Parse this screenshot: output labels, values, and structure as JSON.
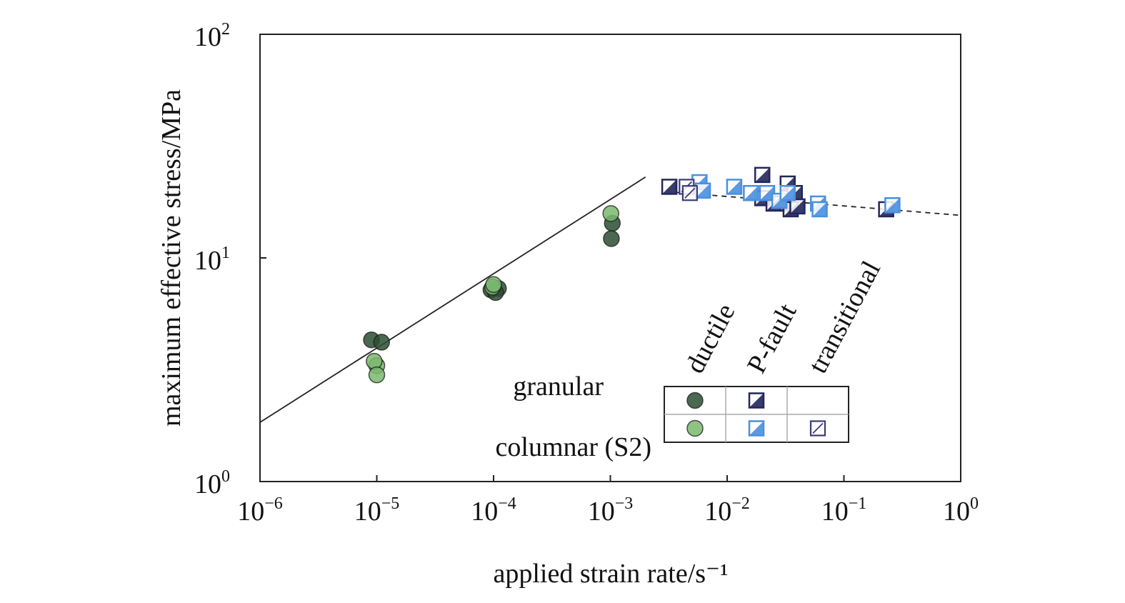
{
  "chart_data": {
    "type": "scatter",
    "x_scale": "log",
    "y_scale": "log",
    "xlabel": "applied strain rate/s⁻¹",
    "ylabel": "maximum effective stress/MPa",
    "xlim": [
      1e-06,
      1
    ],
    "ylim": [
      1,
      100
    ],
    "grid": false,
    "x_ticks": [
      {
        "value": 1e-06,
        "base": "10",
        "exp": "−6"
      },
      {
        "value": 1e-05,
        "base": "10",
        "exp": "−5"
      },
      {
        "value": 0.0001,
        "base": "10",
        "exp": "−4"
      },
      {
        "value": 0.001,
        "base": "10",
        "exp": "−3"
      },
      {
        "value": 0.01,
        "base": "10",
        "exp": "−2"
      },
      {
        "value": 0.1,
        "base": "10",
        "exp": "−1"
      },
      {
        "value": 1,
        "base": "10",
        "exp": "0"
      }
    ],
    "y_ticks": [
      {
        "value": 1,
        "base": "10",
        "exp": "0"
      },
      {
        "value": 10,
        "base": "10",
        "exp": "1"
      },
      {
        "value": 100,
        "base": "10",
        "exp": "2"
      }
    ],
    "fit_lines": [
      {
        "style": "solid",
        "points": [
          [
            1e-06,
            1.84
          ],
          [
            0.002,
            23.0
          ]
        ]
      },
      {
        "style": "dashed",
        "points": [
          [
            0.003,
            19.8
          ],
          [
            1,
            15.5
          ]
        ]
      }
    ],
    "series": [
      {
        "failure_mode": "ductile",
        "ice_type": "granular",
        "marker": "circle",
        "fill": "#2b4d33",
        "points": [
          [
            9e-06,
            4.3
          ],
          [
            1.1e-05,
            4.2
          ],
          [
            9.5e-05,
            7.2
          ],
          [
            0.00011,
            7.3
          ],
          [
            0.000104,
            7.0
          ],
          [
            0.00104,
            14.3
          ],
          [
            0.00102,
            12.2
          ]
        ]
      },
      {
        "failure_mode": "ductile",
        "ice_type": "columnar (S2)",
        "marker": "circle",
        "fill": "#7ab86e",
        "points": [
          [
            1e-05,
            3.3
          ],
          [
            9.5e-06,
            3.45
          ],
          [
            1e-05,
            3.0
          ],
          [
            9.8e-05,
            7.4
          ],
          [
            0.0001,
            7.6
          ],
          [
            0.00101,
            15.8
          ]
        ]
      },
      {
        "failure_mode": "P-fault",
        "ice_type": "granular",
        "marker": "square-half",
        "fill": "#22275a",
        "points": [
          [
            0.0032,
            20.8
          ],
          [
            0.02,
            23.5
          ],
          [
            0.02,
            18.5
          ],
          [
            0.025,
            17.5
          ],
          [
            0.033,
            21.5
          ],
          [
            0.033,
            17.5
          ],
          [
            0.035,
            16.5
          ],
          [
            0.038,
            19.5
          ],
          [
            0.04,
            17.0
          ],
          [
            0.23,
            16.5
          ]
        ]
      },
      {
        "failure_mode": "P-fault",
        "ice_type": "columnar (S2)",
        "marker": "square-half",
        "fill": "#4a8fe0",
        "points": [
          [
            0.0058,
            21.8
          ],
          [
            0.0062,
            20.0
          ],
          [
            0.0115,
            20.8
          ],
          [
            0.016,
            19.5
          ],
          [
            0.022,
            19.5
          ],
          [
            0.028,
            18.0
          ],
          [
            0.033,
            19.5
          ],
          [
            0.06,
            17.5
          ],
          [
            0.062,
            16.5
          ],
          [
            0.26,
            17.2
          ]
        ]
      },
      {
        "failure_mode": "transitional",
        "ice_type": "columnar (S2)",
        "marker": "square-empty",
        "fill": "#ffffff",
        "points": [
          [
            0.0045,
            20.8
          ],
          [
            0.0048,
            19.5
          ]
        ]
      }
    ],
    "legend": {
      "placement": "bottom-right",
      "columns": [
        "ductile",
        "P-fault",
        "transitional"
      ],
      "rows": [
        "granular",
        "columnar (S2)"
      ]
    }
  }
}
